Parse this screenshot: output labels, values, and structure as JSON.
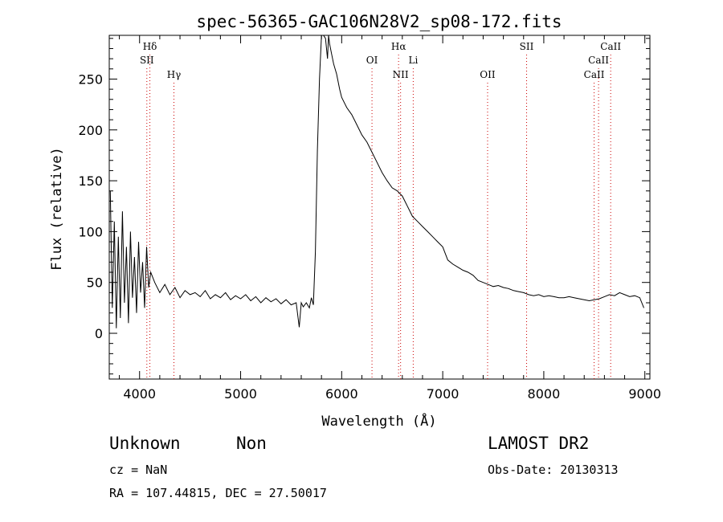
{
  "chart_data": {
    "type": "line",
    "title": "spec-56365-GAC106N28V2_sp08-172.fits",
    "xlabel": "Wavelength (Å)",
    "ylabel": "Flux (relative)",
    "xlim": [
      3700,
      9050
    ],
    "ylim": [
      -45,
      293
    ],
    "x_ticks": [
      4000,
      5000,
      6000,
      7000,
      8000,
      9000
    ],
    "y_ticks": [
      0,
      50,
      100,
      150,
      200,
      250
    ],
    "grid": false,
    "line_color": "#000000",
    "marker_color": "#cc0000",
    "series": [
      {
        "x": [
          3710,
          3730,
          3750,
          3770,
          3790,
          3810,
          3830,
          3850,
          3870,
          3890,
          3910,
          3930,
          3950,
          3970,
          3990,
          4010,
          4030,
          4050,
          4070,
          4090,
          4110,
          4150,
          4200,
          4250,
          4300,
          4350,
          4400,
          4450,
          4500,
          4550,
          4600,
          4650,
          4700,
          4750,
          4800,
          4850,
          4900,
          4950,
          5000,
          5050,
          5100,
          5150,
          5200,
          5250,
          5300,
          5350,
          5400,
          5450,
          5500,
          5550,
          5580,
          5600,
          5620,
          5650,
          5680,
          5700,
          5720,
          5740,
          5760,
          5780,
          5800,
          5820,
          5840,
          5860,
          5870,
          5880,
          5900,
          5920,
          5950,
          5980,
          6000,
          6050,
          6100,
          6150,
          6200,
          6250,
          6300,
          6350,
          6400,
          6450,
          6500,
          6550,
          6600,
          6650,
          6700,
          6750,
          6800,
          6850,
          6900,
          6950,
          7000,
          7050,
          7100,
          7150,
          7200,
          7250,
          7300,
          7350,
          7400,
          7450,
          7500,
          7550,
          7600,
          7650,
          7700,
          7750,
          7800,
          7850,
          7900,
          7950,
          8000,
          8050,
          8100,
          8150,
          8200,
          8250,
          8300,
          8350,
          8400,
          8450,
          8500,
          8550,
          8600,
          8650,
          8700,
          8750,
          8800,
          8850,
          8900,
          8950,
          8990
        ],
        "y": [
          140,
          25,
          110,
          5,
          95,
          15,
          120,
          30,
          85,
          10,
          100,
          35,
          75,
          20,
          90,
          40,
          70,
          25,
          85,
          45,
          60,
          50,
          40,
          48,
          38,
          45,
          35,
          42,
          38,
          40,
          36,
          42,
          34,
          38,
          35,
          40,
          33,
          37,
          34,
          38,
          32,
          36,
          30,
          35,
          31,
          34,
          29,
          33,
          28,
          30,
          6,
          30,
          26,
          30,
          25,
          35,
          28,
          80,
          180,
          250,
          295,
          295,
          290,
          270,
          295,
          285,
          275,
          265,
          255,
          240,
          232,
          222,
          215,
          205,
          195,
          188,
          178,
          168,
          158,
          150,
          143,
          140,
          135,
          125,
          115,
          110,
          105,
          100,
          95,
          90,
          85,
          72,
          68,
          65,
          62,
          60,
          57,
          52,
          50,
          48,
          46,
          47,
          45,
          44,
          42,
          41,
          40,
          38,
          37,
          38,
          36,
          37,
          36,
          35,
          35,
          36,
          35,
          34,
          33,
          32,
          33,
          34,
          36,
          38,
          37,
          40,
          38,
          36,
          37,
          35,
          25
        ]
      }
    ],
    "lines": [
      {
        "label": "Hδ",
        "x": 4102,
        "label_row": 1
      },
      {
        "label": "SII",
        "x": 4072,
        "label_row": 2
      },
      {
        "label": "Hγ",
        "x": 4340,
        "label_row": 3
      },
      {
        "label": "OI",
        "x": 6300,
        "label_row": 2
      },
      {
        "label": "Hα",
        "x": 6563,
        "label_row": 1
      },
      {
        "label": "NII",
        "x": 6583,
        "label_row": 3
      },
      {
        "label": "Li",
        "x": 6708,
        "label_row": 2
      },
      {
        "label": "OII",
        "x": 7444,
        "label_row": 3
      },
      {
        "label": "SII",
        "x": 7830,
        "label_row": 1
      },
      {
        "label": "CaII",
        "x": 8662,
        "label_row": 1
      },
      {
        "label": "CaII",
        "x": 8542,
        "label_row": 2
      },
      {
        "label": "CaII",
        "x": 8498,
        "label_row": 3
      }
    ]
  },
  "info": {
    "class": "Unknown",
    "subclass": "Non",
    "cz": "cz = NaN",
    "coords": "RA = 107.44815, DEC =  27.50017",
    "survey": "LAMOST DR2",
    "obs_date": "Obs-Date: 20130313"
  }
}
